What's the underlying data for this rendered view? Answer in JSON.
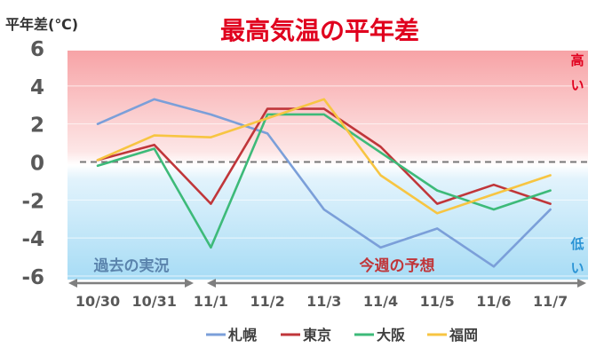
{
  "chart_data": {
    "type": "line",
    "title": "最高気温の平年差",
    "ylabel": "平年差(℃)",
    "xlabel": "",
    "categories": [
      "10/30",
      "10/31",
      "11/1",
      "11/2",
      "11/3",
      "11/4",
      "11/5",
      "11/6",
      "11/7"
    ],
    "ylim": [
      -6,
      6
    ],
    "yticks": [
      6,
      4,
      2,
      0,
      -2,
      -4,
      -6
    ],
    "series": [
      {
        "name": "札幌",
        "color": "#7b9fd9",
        "values": [
          2.0,
          3.3,
          2.5,
          1.5,
          -2.5,
          -4.5,
          -3.5,
          -5.5,
          -2.5
        ]
      },
      {
        "name": "東京",
        "color": "#c0363a",
        "values": [
          0.1,
          0.9,
          -2.2,
          2.8,
          2.8,
          0.8,
          -2.2,
          -1.2,
          -2.2
        ]
      },
      {
        "name": "大阪",
        "color": "#3dba79",
        "values": [
          -0.2,
          0.7,
          -4.5,
          2.5,
          2.5,
          0.5,
          -1.5,
          -2.5,
          -1.5
        ]
      },
      {
        "name": "福岡",
        "color": "#f7c542",
        "values": [
          0.1,
          1.4,
          1.3,
          2.3,
          3.3,
          -0.7,
          -2.7,
          -1.7,
          -0.7
        ]
      }
    ],
    "annotations": {
      "high": "高い",
      "low": "低い",
      "past": "過去の実況",
      "forecast": "今週の予想"
    },
    "baseline": {
      "value": 0,
      "style": "dashed"
    },
    "legend_position": "bottom",
    "colors": {
      "title": "#e0001e",
      "high_band": "#f7a3a6",
      "low_band": "#a7dcf5",
      "high_text": "#e0001e",
      "low_text": "#2a93d5",
      "past_text": "#5b84ad",
      "forecast_text": "#c0363a"
    }
  }
}
